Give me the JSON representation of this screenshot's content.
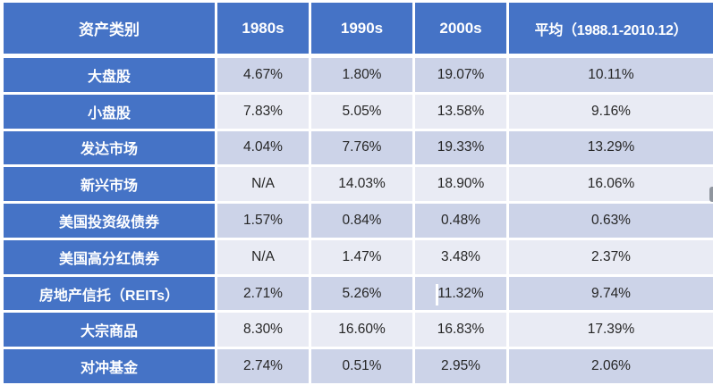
{
  "chart_data": {
    "type": "table",
    "columns": [
      "资产类别",
      "1980s",
      "1990s",
      "2000s",
      "平均（1988.1-2010.12）"
    ],
    "rows": [
      {
        "label": "大盘股",
        "values": [
          "4.67%",
          "1.80%",
          "19.07%",
          "10.11%"
        ]
      },
      {
        "label": "小盘股",
        "values": [
          "7.83%",
          "5.05%",
          "13.58%",
          "9.16%"
        ]
      },
      {
        "label": "发达市场",
        "values": [
          "4.04%",
          "7.76%",
          "19.33%",
          "13.29%"
        ]
      },
      {
        "label": "新兴市场",
        "values": [
          "N/A",
          "14.03%",
          "18.90%",
          "16.06%"
        ]
      },
      {
        "label": "美国投资级债券",
        "values": [
          "1.57%",
          "0.84%",
          "0.48%",
          "0.63%"
        ]
      },
      {
        "label": "美国高分红债券",
        "values": [
          "N/A",
          "1.47%",
          "3.48%",
          "2.37%"
        ]
      },
      {
        "label": "房地产信托（REITs）",
        "values": [
          "2.71%",
          "5.26%",
          "11.32%",
          "9.74%"
        ]
      },
      {
        "label": "大宗商品",
        "values": [
          "8.30%",
          "16.60%",
          "16.83%",
          "17.39%"
        ]
      },
      {
        "label": "对冲基金",
        "values": [
          "2.74%",
          "0.51%",
          "2.95%",
          "2.06%"
        ]
      }
    ],
    "layout": {
      "banding": "odd rows dark, even rows light",
      "grid": "white 3px gridlines",
      "legend_position": "none"
    }
  },
  "colors": {
    "header_bg": "#4573C6",
    "label_bg": "#4573C6",
    "band_dark": "#CCD3E8",
    "band_light": "#E9EBF4",
    "header_text": "#FFFFFF",
    "value_text": "#262626",
    "grid_line": "#FFFFFF",
    "edge_marker": "#8F959E"
  }
}
